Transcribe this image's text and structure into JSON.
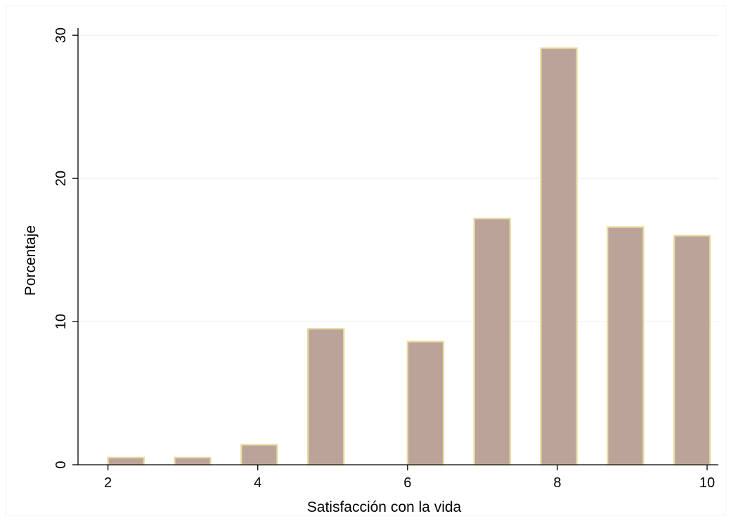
{
  "chart_data": {
    "type": "bar",
    "xlabel": "Satisfacción con la vida",
    "ylabel": "Porcentaje",
    "x_ticks": [
      2,
      4,
      6,
      8,
      10
    ],
    "y_ticks": [
      0,
      10,
      20,
      30
    ],
    "xlim": [
      1.6,
      10.15
    ],
    "ylim": [
      0,
      30.5
    ],
    "grid": true,
    "bar_width": 0.48,
    "colors": {
      "bar_fill": "#bba39a",
      "bar_stroke": "#e6dca0",
      "grid": "#eaf2f3",
      "frame": "#eef2f3"
    },
    "bars": [
      {
        "x": 2.24,
        "value": 0.5
      },
      {
        "x": 3.13,
        "value": 0.5
      },
      {
        "x": 4.02,
        "value": 1.4
      },
      {
        "x": 4.91,
        "value": 9.5
      },
      {
        "x": 6.24,
        "value": 8.6
      },
      {
        "x": 7.13,
        "value": 17.2
      },
      {
        "x": 8.02,
        "value": 29.1
      },
      {
        "x": 8.91,
        "value": 16.6
      },
      {
        "x": 9.8,
        "value": 16.0
      }
    ]
  }
}
